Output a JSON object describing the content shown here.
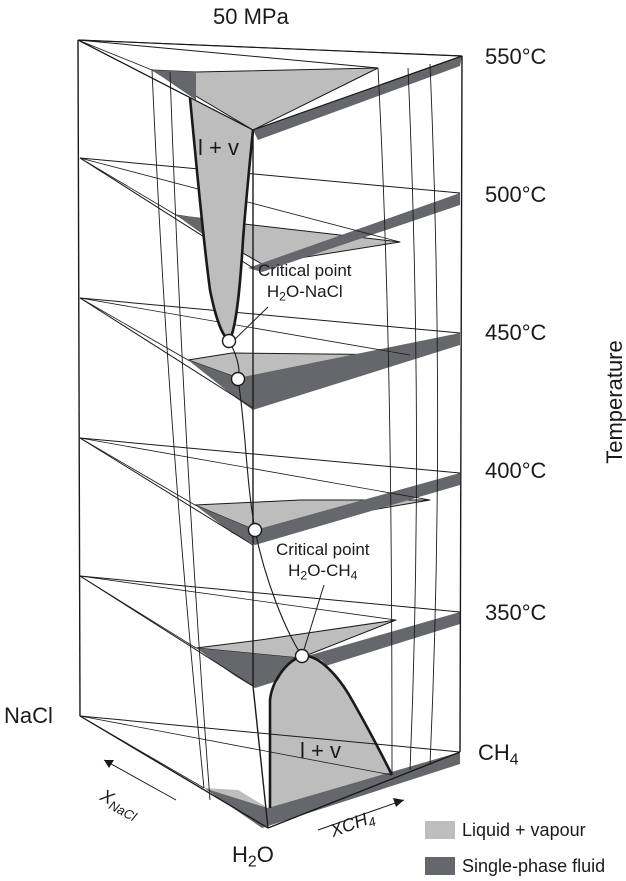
{
  "title": "50 MPa",
  "temperature_axis": {
    "label": "Temperature",
    "ticks": [
      "550°C",
      "500°C",
      "450°C",
      "400°C",
      "350°C"
    ]
  },
  "components": {
    "nacl": "NaCl",
    "ch4_base": "CH",
    "ch4_sub": "4",
    "h2o_base": "H",
    "h2o_sub": "2",
    "h2o_tail": "O"
  },
  "axes": {
    "x_nacl_base": "X",
    "x_nacl_sub": "NaCl",
    "x_ch4_base": "XCH",
    "x_ch4_sub": "4"
  },
  "region_labels": {
    "top": "l + v",
    "bottom": "l + v"
  },
  "annotations": {
    "cp_nacl_line1": "Critical point",
    "cp_nacl_f1": "H",
    "cp_nacl_s1": "2",
    "cp_nacl_f2": "O-NaCl",
    "cp_ch4_line1": "Critical point",
    "cp_ch4_f1": "H",
    "cp_ch4_s1": "2",
    "cp_ch4_f2": "O-CH",
    "cp_ch4_s2": "4"
  },
  "legend": [
    {
      "label": "Liquid + vapour",
      "color": "#bdbdbd"
    },
    {
      "label": "Single-phase fluid",
      "color": "#66676b"
    }
  ]
}
